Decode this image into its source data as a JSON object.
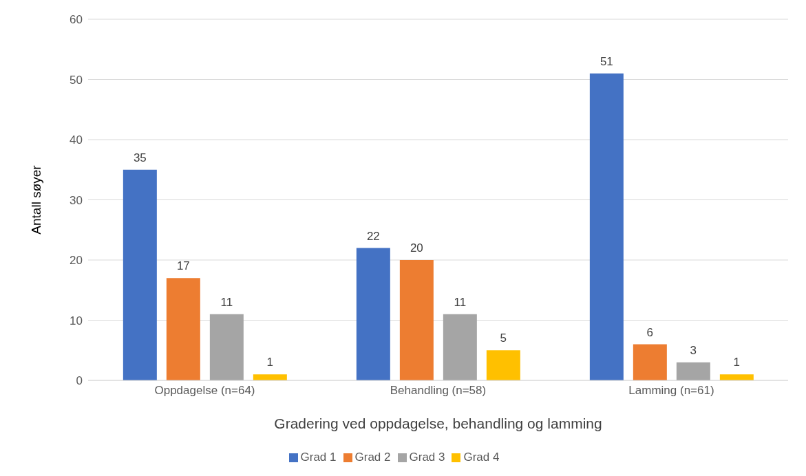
{
  "chart_data": {
    "type": "bar",
    "xlabel": "Gradering ved oppdagelse, behandling og lamming",
    "ylabel": "Antall søyer",
    "categories": [
      "Oppdagelse (n=64)",
      "Behandling (n=58)",
      "Lamming (n=61)"
    ],
    "series": [
      {
        "name": "Grad 1",
        "color": "#4472c4",
        "values": [
          35,
          22,
          51
        ]
      },
      {
        "name": "Grad 2",
        "color": "#ed7d31",
        "values": [
          17,
          20,
          6
        ]
      },
      {
        "name": "Grad 3",
        "color": "#a5a5a5",
        "values": [
          11,
          11,
          3
        ]
      },
      {
        "name": "Grad 4",
        "color": "#ffc000",
        "values": [
          1,
          5,
          1
        ]
      }
    ],
    "ylim": [
      0,
      60
    ],
    "yticks": [
      0,
      10,
      20,
      30,
      40,
      50,
      60
    ],
    "grid": "y",
    "legend": "bottom",
    "data_labels": true
  }
}
